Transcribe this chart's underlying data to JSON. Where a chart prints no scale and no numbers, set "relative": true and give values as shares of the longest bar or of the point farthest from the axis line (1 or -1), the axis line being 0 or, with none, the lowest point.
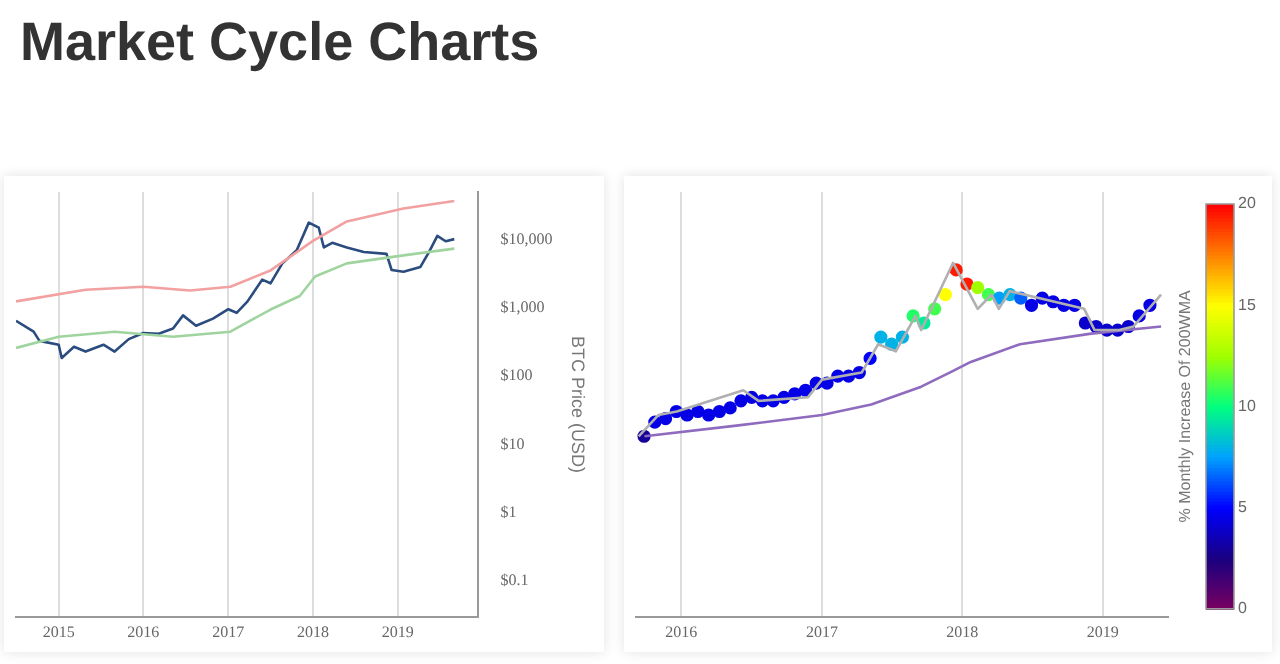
{
  "chart_data": [
    {
      "type": "line",
      "title": "Market Cycle Charts",
      "ylabel": "BTC Price (USD)",
      "log": true,
      "grid": "x",
      "xlim": [
        "2014-07-01",
        "2019-12-15"
      ],
      "xticks": [
        "2015",
        "2016",
        "2017",
        "2018",
        "2019"
      ],
      "ylim": [
        0.03,
        50000
      ],
      "yticks": [
        {
          "value": 0.1,
          "label": "$0.1"
        },
        {
          "value": 1,
          "label": "$1"
        },
        {
          "value": 10,
          "label": "$10"
        },
        {
          "value": 100,
          "label": "$100"
        },
        {
          "value": 1000,
          "label": "$1,000"
        },
        {
          "value": 10000,
          "label": "$10,000"
        }
      ],
      "series": [
        {
          "color": "#f2a0a0",
          "x": [
            "2014-07-01",
            "2015-04-27",
            "2016-01-01",
            "2016-07-20",
            "2017-01-10",
            "2017-07-02",
            "2018-01-01",
            "2018-05-27",
            "2019-01-26",
            "2019-09-02"
          ],
          "values": [
            1250,
            1850,
            2050,
            1800,
            2050,
            3550,
            9600,
            18500,
            28600,
            37000
          ]
        },
        {
          "color": "#9fd49f",
          "x": [
            "2014-07-01",
            "2015-01-01",
            "2015-08-30",
            "2016-05-08",
            "2017-01-10",
            "2017-07-02",
            "2017-11-05",
            "2018-01-10",
            "2018-05-27",
            "2019-01-26",
            "2019-09-02"
          ],
          "values": [
            260,
            380,
            450,
            380,
            450,
            950,
            1500,
            2900,
            4500,
            5900,
            7400
          ]
        },
        {
          "color": "#2b4c7e",
          "x": [
            "2014-07-01",
            "2014-09-15",
            "2014-10-10",
            "2015-01-01",
            "2015-01-14",
            "2015-03-08",
            "2015-04-27",
            "2015-07-13",
            "2015-08-30",
            "2015-10-30",
            "2016-01-01",
            "2016-03-07",
            "2016-05-08",
            "2016-06-20",
            "2016-08-15",
            "2016-10-27",
            "2017-01-01",
            "2017-02-06",
            "2017-03-25",
            "2017-05-27",
            "2017-07-02",
            "2017-08-22",
            "2017-10-23",
            "2017-12-14",
            "2018-01-26",
            "2018-02-17",
            "2018-03-25",
            "2018-05-27",
            "2018-08-08",
            "2018-11-14",
            "2018-12-06",
            "2019-01-26",
            "2019-04-09",
            "2019-05-16",
            "2019-06-21",
            "2019-07-27",
            "2019-09-02"
          ],
          "values": [
            650,
            450,
            330,
            290,
            185,
            270,
            230,
            290,
            230,
            350,
            430,
            420,
            500,
            780,
            550,
            700,
            960,
            850,
            1250,
            2600,
            2300,
            4500,
            7000,
            17800,
            15000,
            7700,
            9000,
            7700,
            6600,
            6200,
            3600,
            3400,
            4000,
            6600,
            11400,
            9500,
            10200
          ]
        }
      ]
    },
    {
      "type": "scatter",
      "relative": true,
      "grid": "x",
      "xlim": [
        "2015-09-05",
        "2019-06-20"
      ],
      "xticks": [
        "2016",
        "2017",
        "2018",
        "2019"
      ],
      "clabel": "% Monthly Increase Of 200WMA",
      "clim": [
        0,
        20
      ],
      "cticks": [
        0,
        5,
        10,
        15,
        20
      ],
      "series": [
        {
          "type": "line",
          "color": "#b0b0b0",
          "x": [
            "2015-09-12",
            "2015-11-02",
            "2015-12-20",
            "2016-06-10",
            "2016-07-20",
            "2016-11-25",
            "2017-01-01",
            "2017-04-14",
            "2017-05-27",
            "2017-07-12",
            "2017-09-01",
            "2017-09-16",
            "2017-12-08",
            "2018-02-10",
            "2018-03-18",
            "2018-04-06",
            "2018-05-04",
            "2018-11-14",
            "2018-12-11",
            "2019-02-13",
            "2019-03-22",
            "2019-06-02"
          ],
          "values": [
            0.51,
            0.57,
            0.58,
            0.64,
            0.61,
            0.62,
            0.67,
            0.69,
            0.77,
            0.75,
            0.85,
            0.81,
            1.0,
            0.87,
            0.91,
            0.87,
            0.92,
            0.87,
            0.81,
            0.81,
            0.82,
            0.91
          ]
        },
        {
          "type": "line",
          "color": "#8e6bbf",
          "x": [
            "2015-09-27",
            "2016-05-23",
            "2017-01-01",
            "2017-05-09",
            "2017-09-16",
            "2017-11-29",
            "2018-01-23",
            "2018-05-31",
            "2018-12-02",
            "2019-06-02"
          ],
          "values": [
            0.51,
            0.54,
            0.57,
            0.6,
            0.65,
            0.69,
            0.72,
            0.77,
            0.8,
            0.82
          ]
        },
        {
          "marker": "circle",
          "colors": [
            "#150099",
            "#0500e6",
            "#0500e6",
            "#0500e6",
            "#0500e6",
            "#0500e6",
            "#0500e6",
            "#0500e6",
            "#0500e6",
            "#0500e6",
            "#0500e6",
            "#0500e6",
            "#0500e6",
            "#0500e6",
            "#0500e6",
            "#0500e6",
            "#0500e6",
            "#0500e6",
            "#0500e6",
            "#0500e6",
            "#0500e6",
            "#0000ff",
            "#00b3e6",
            "#00b3e6",
            "#00b3e6",
            "#20ff66",
            "#00ec99",
            "#40ff4d",
            "#ffff00",
            "#ff1a00",
            "#ff1a00",
            "#a0ff00",
            "#40ff4d",
            "#00a0ff",
            "#00b3e6",
            "#0060ff",
            "#0500e6",
            "#0500e6",
            "#0500e6",
            "#0500e6",
            "#0500e6",
            "#0a00cc",
            "#0a00cc",
            "#0a00cc",
            "#0a00cc",
            "#0a00cc",
            "#0500e6",
            "#0500e6"
          ],
          "x": [
            "2015-09-26",
            "2015-10-24",
            "2015-11-21",
            "2015-12-19",
            "2016-01-16",
            "2016-02-13",
            "2016-03-12",
            "2016-04-09",
            "2016-05-07",
            "2016-06-04",
            "2016-07-02",
            "2016-07-30",
            "2016-08-27",
            "2016-09-24",
            "2016-10-22",
            "2016-11-19",
            "2016-12-17",
            "2017-01-14",
            "2017-02-11",
            "2017-03-11",
            "2017-04-08",
            "2017-05-06",
            "2017-06-03",
            "2017-07-01",
            "2017-07-29",
            "2017-08-26",
            "2017-09-23",
            "2017-10-21",
            "2017-11-18",
            "2017-12-16",
            "2018-01-13",
            "2018-02-10",
            "2018-03-10",
            "2018-04-07",
            "2018-05-05",
            "2018-06-02",
            "2018-06-30",
            "2018-07-28",
            "2018-08-25",
            "2018-09-22",
            "2018-10-20",
            "2018-11-17",
            "2018-12-15",
            "2019-01-12",
            "2019-02-09",
            "2019-03-09",
            "2019-04-06",
            "2019-05-04"
          ],
          "values": [
            0.51,
            0.55,
            0.56,
            0.58,
            0.57,
            0.58,
            0.57,
            0.58,
            0.59,
            0.61,
            0.62,
            0.61,
            0.61,
            0.62,
            0.63,
            0.64,
            0.66,
            0.66,
            0.68,
            0.68,
            0.69,
            0.73,
            0.79,
            0.77,
            0.79,
            0.85,
            0.83,
            0.87,
            0.91,
            0.98,
            0.94,
            0.93,
            0.91,
            0.9,
            0.91,
            0.9,
            0.88,
            0.9,
            0.89,
            0.88,
            0.88,
            0.83,
            0.82,
            0.81,
            0.81,
            0.82,
            0.85,
            0.88
          ],
          "cvalues": [
            3,
            4.5,
            4.5,
            4.5,
            4.5,
            4.5,
            4.5,
            4.5,
            4.5,
            4.5,
            4.5,
            4.5,
            4.5,
            4.5,
            4.5,
            4.5,
            4.5,
            4.5,
            4.5,
            4.5,
            4.5,
            5,
            8,
            8,
            8,
            10.5,
            9.5,
            11,
            15,
            19.5,
            19.5,
            12.5,
            11,
            7.5,
            8,
            6.5,
            4.5,
            4.5,
            4.5,
            4.5,
            4.5,
            4,
            4,
            4,
            4,
            4,
            4.5,
            4.5
          ]
        }
      ]
    }
  ]
}
